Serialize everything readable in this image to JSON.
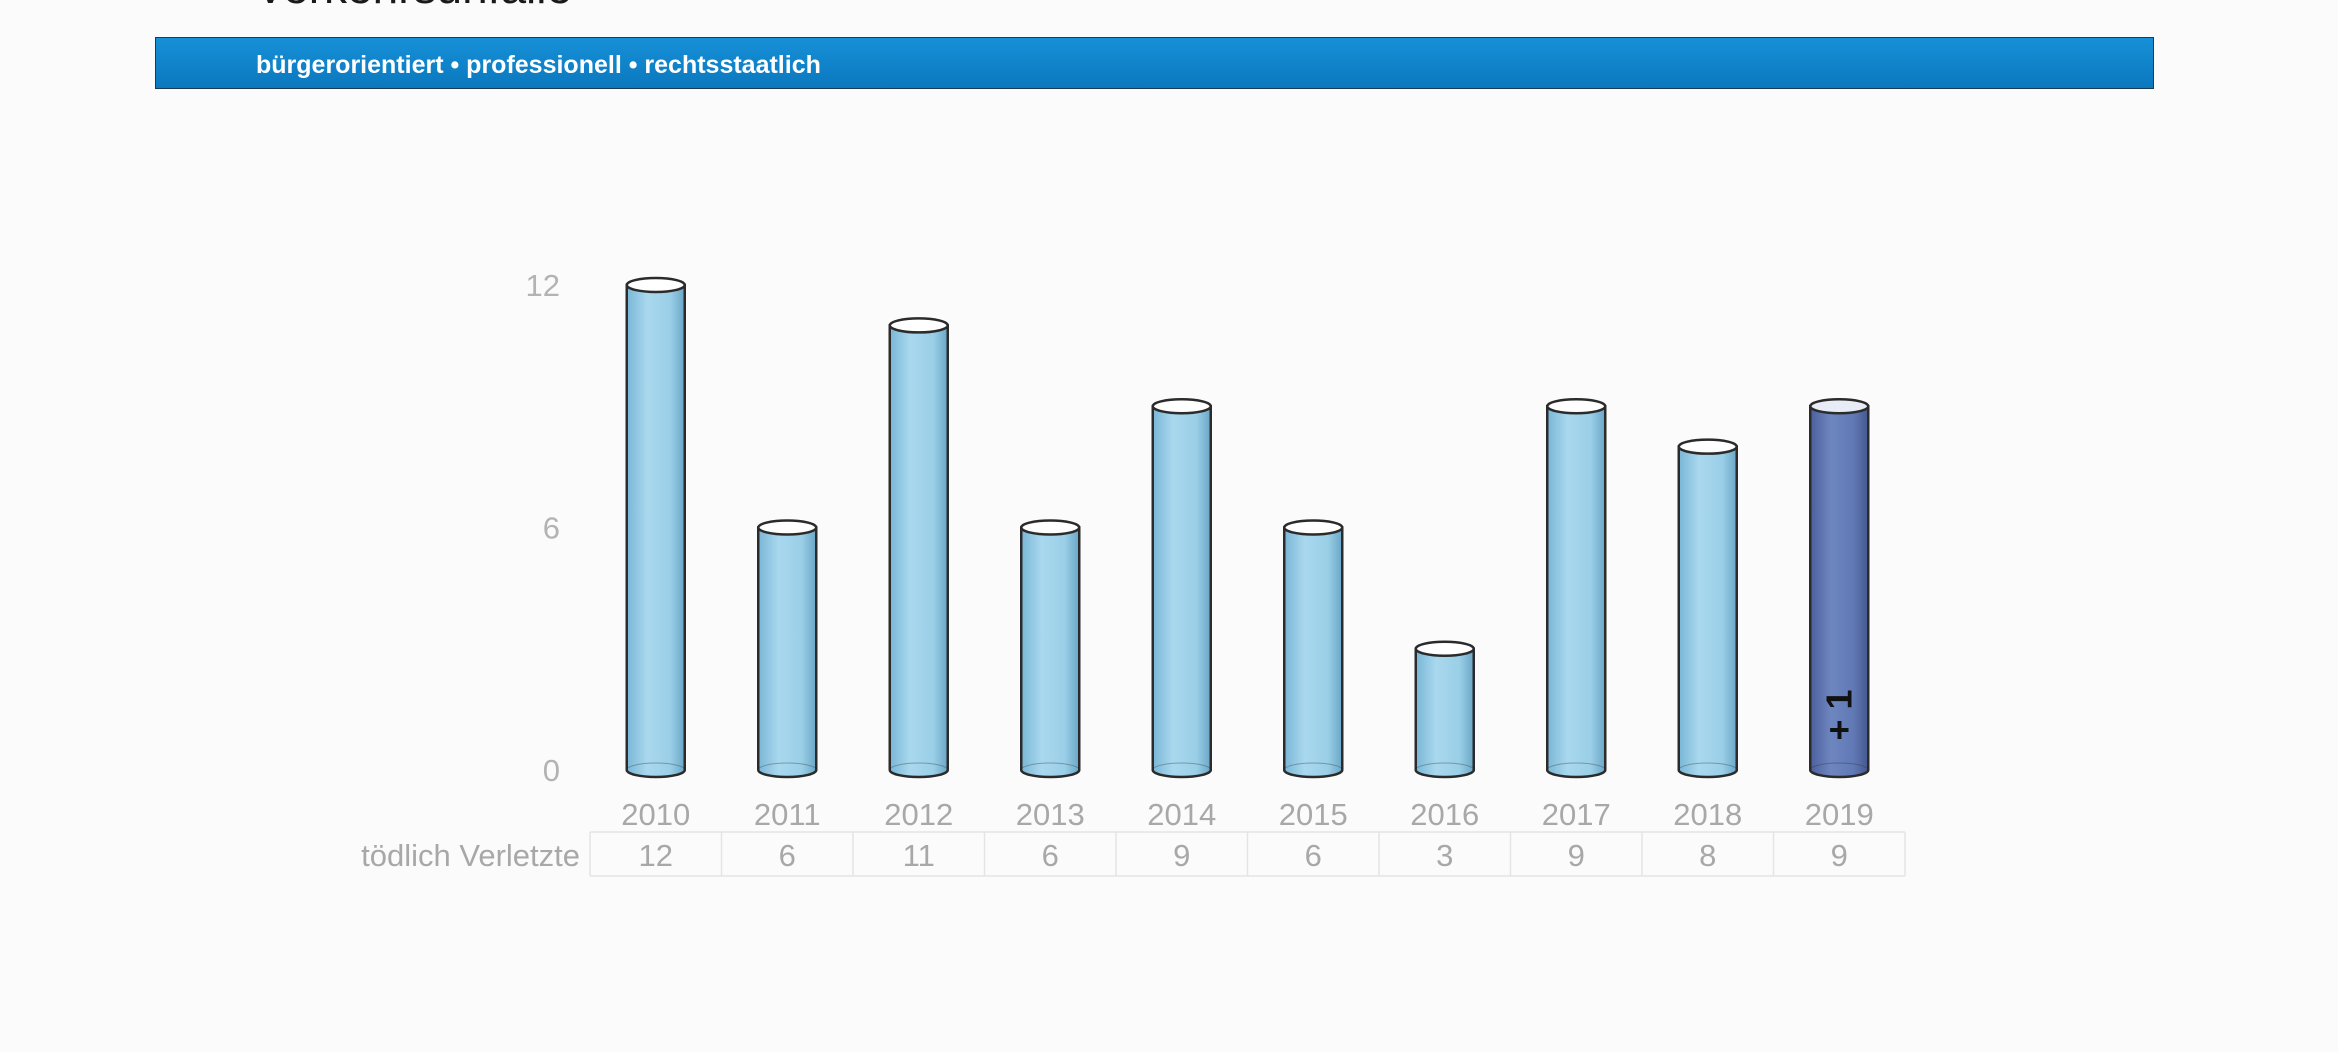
{
  "header": {
    "title": "Verkehrsunfälle",
    "banner_text": "bürgerorientiert • professionell • rechtsstaatlich"
  },
  "colors": {
    "banner": "#0b80c6",
    "bar": "#9fd2e9",
    "bar_highlight": "#5f79b8",
    "outline": "#2b2b2b"
  },
  "chart_data": {
    "type": "bar",
    "style": "3d-cylinder",
    "categories": [
      "2010",
      "2011",
      "2012",
      "2013",
      "2014",
      "2015",
      "2016",
      "2017",
      "2018",
      "2019"
    ],
    "series": [
      {
        "name": "tödlich Verletzte",
        "values": [
          12,
          6,
          11,
          6,
          9,
          6,
          3,
          9,
          8,
          9
        ]
      }
    ],
    "highlight_category": "2019",
    "yticks": [
      0,
      6,
      12
    ],
    "ylim": [
      0,
      12
    ],
    "grid": false,
    "data_table": {
      "row_label": "tödlich Verletzte",
      "values": [
        "12",
        "6",
        "11",
        "6",
        "9",
        "6",
        "3",
        "9",
        "8",
        "9"
      ]
    },
    "annotations": [
      {
        "category": "2019",
        "text": "+ 1"
      }
    ]
  }
}
